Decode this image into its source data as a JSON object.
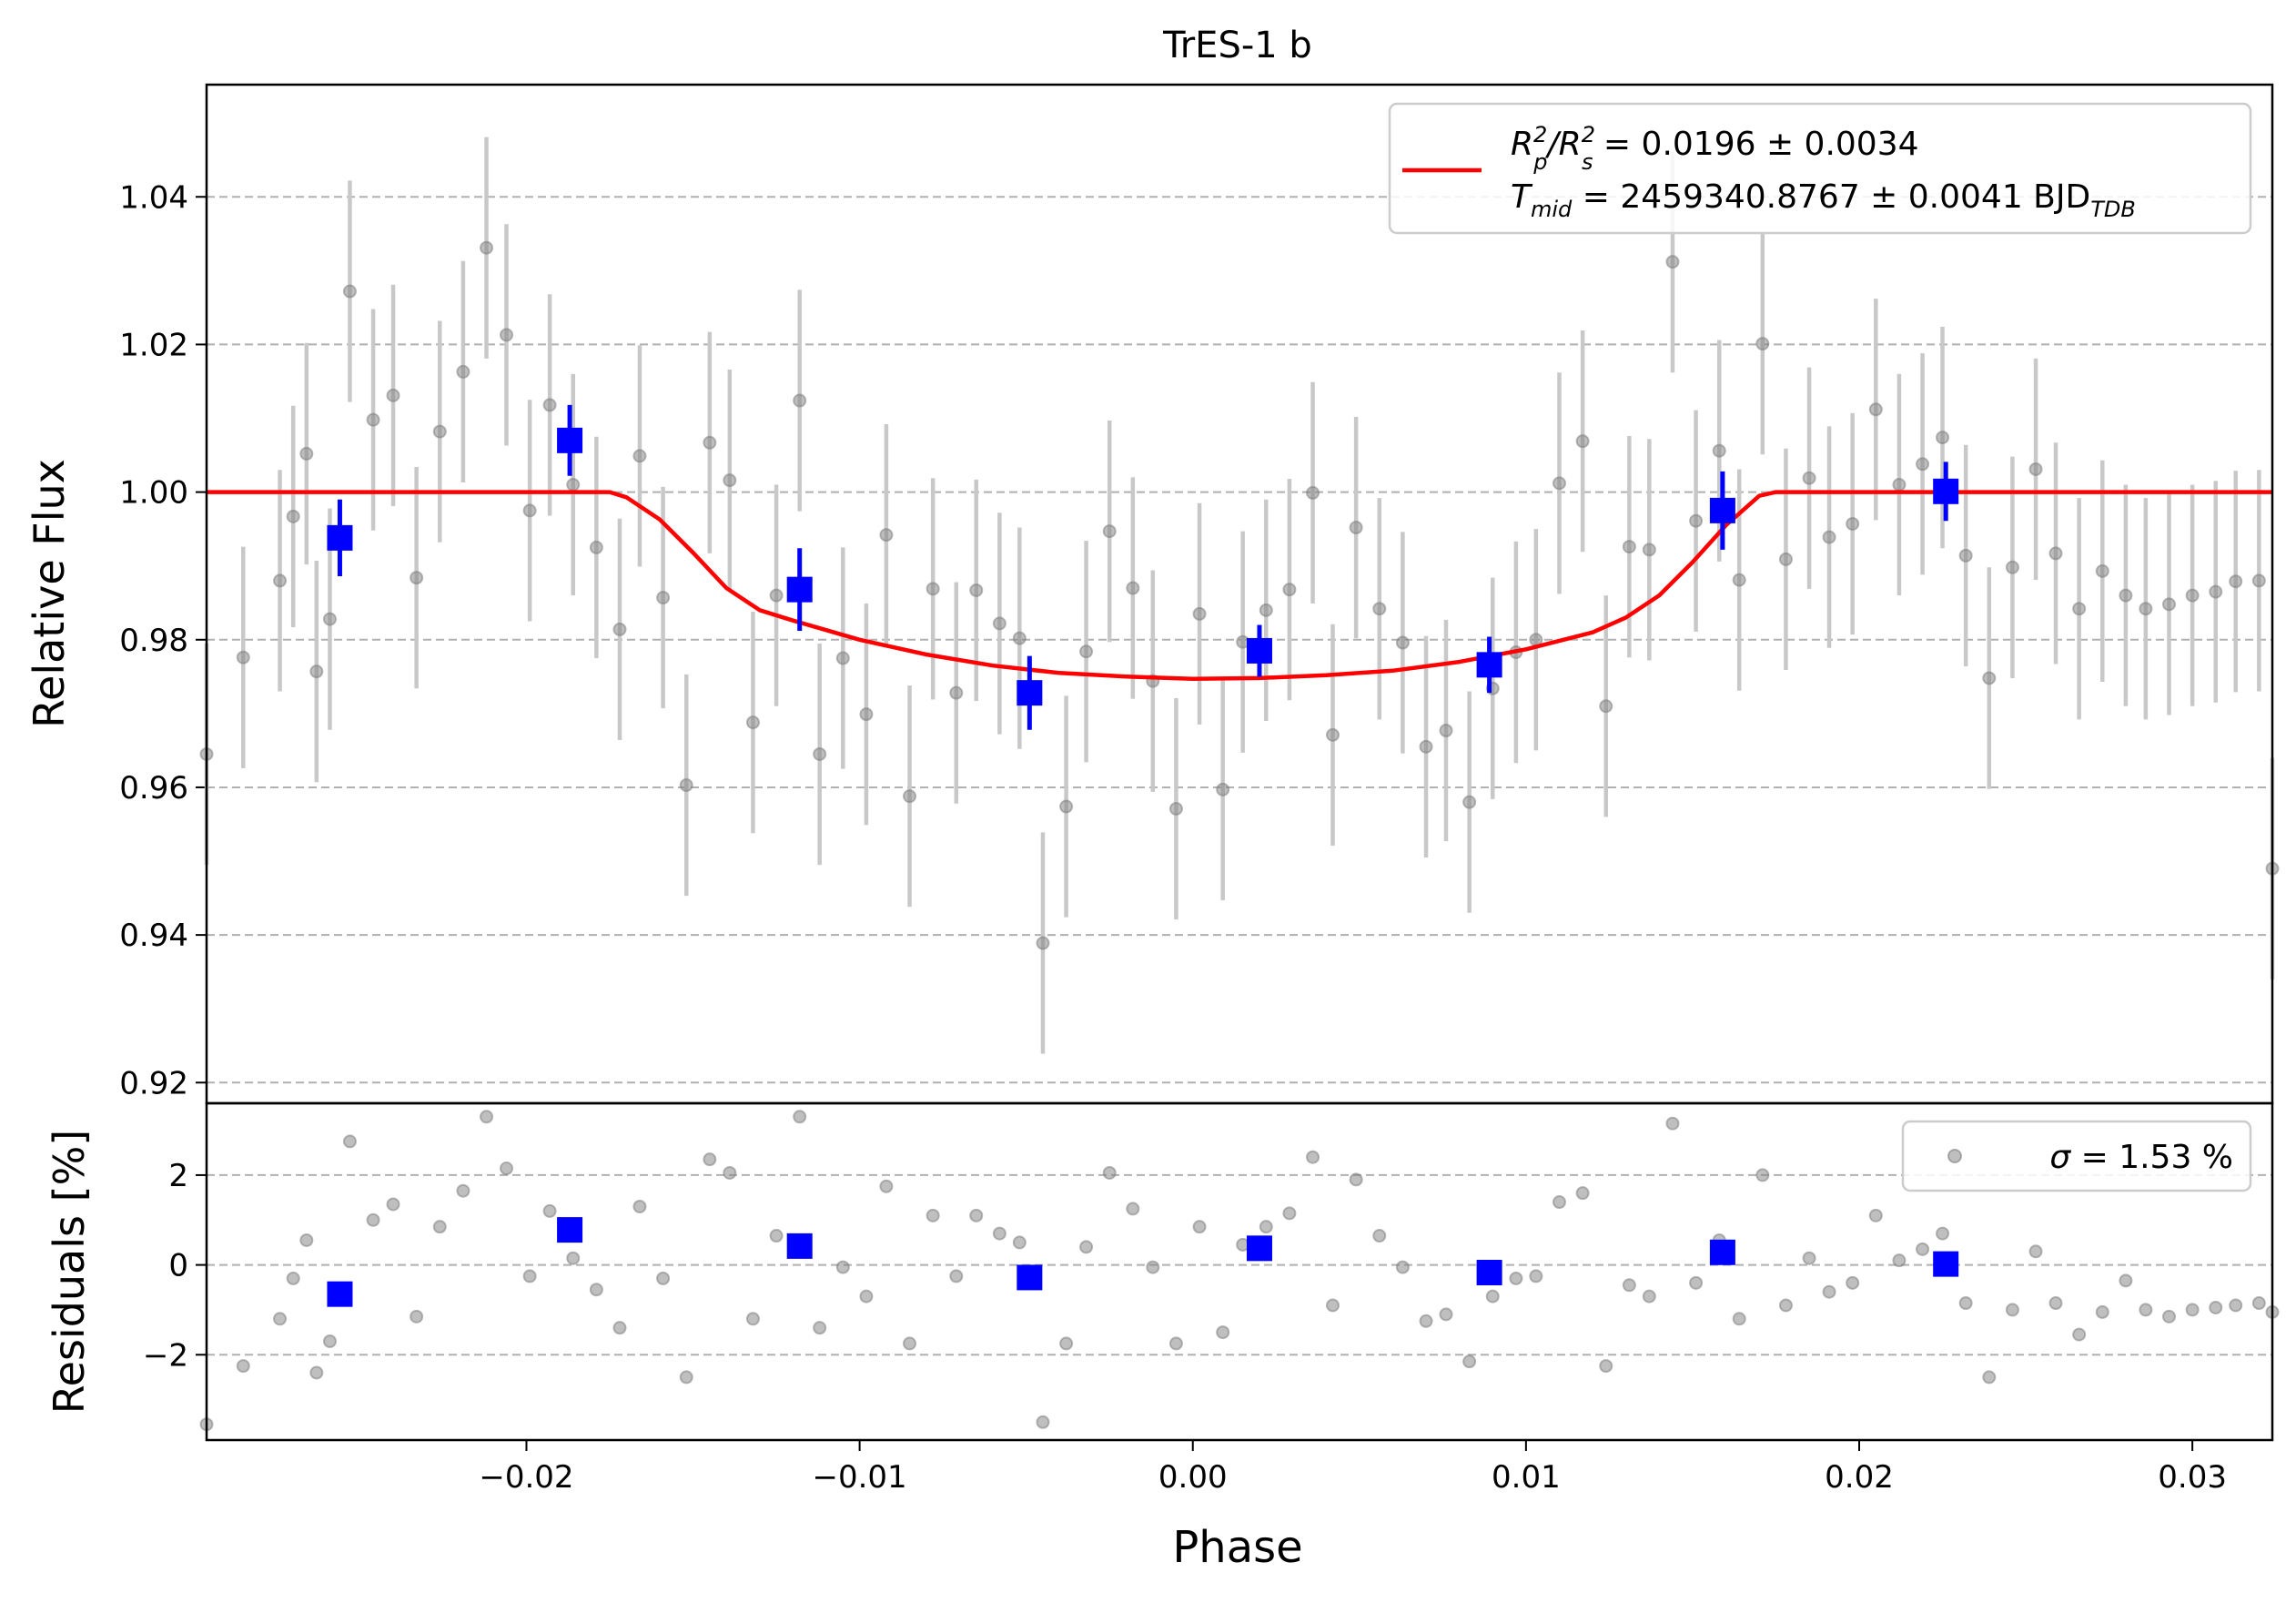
{
  "chart_data": [
    {
      "type": "scatter",
      "title": "TrES-1 b",
      "xlabel": "",
      "ylabel": "Relative Flux",
      "xlim": [
        -0.0296,
        0.0324
      ],
      "ylim": [
        0.9172,
        1.0552
      ],
      "yticks": [
        0.92,
        0.94,
        0.96,
        0.98,
        1.0,
        1.02,
        1.04
      ],
      "ytick_labels": [
        "0.92",
        "0.94",
        "0.96",
        "0.98",
        "1.00",
        "1.02",
        "1.04"
      ],
      "grid": "horizontal dashed",
      "legend_position": "top-right",
      "legend": {
        "line1": {
          "lhs": "R",
          "lhs_sup": "2",
          "lhs_sub": "p",
          "mid": "/R",
          "mid_sup": "2",
          "mid_sub": "s",
          "rest": " = 0.0196 ± 0.0034"
        },
        "line2": {
          "lhs": "T",
          "lhs_sub": "mid",
          "rest": " = 2459340.8767 ± 0.0041 BJD",
          "rest_sub": "TDB"
        }
      },
      "colors": {
        "raw": "#808080",
        "raw_err": "#c8c8c8",
        "binned": "#0000ff",
        "model": "#ff0000"
      },
      "series": [
        {
          "kind": "raw",
          "x": [
            -0.0296,
            -0.0285,
            -0.0274,
            -0.027,
            -0.0266,
            -0.0263,
            -0.0259,
            -0.0253,
            -0.0246,
            -0.024,
            -0.0233,
            -0.0226,
            -0.0219,
            -0.0212,
            -0.0206,
            -0.0199,
            -0.0193,
            -0.0186,
            -0.0179,
            -0.0172,
            -0.0166,
            -0.0159,
            -0.0152,
            -0.0145,
            -0.0139,
            -0.0132,
            -0.0125,
            -0.0118,
            -0.0112,
            -0.0105,
            -0.0098,
            -0.0092,
            -0.0085,
            -0.0078,
            -0.0071,
            -0.0065,
            -0.0058,
            -0.0052,
            -0.0045,
            -0.0038,
            -0.0032,
            -0.0025,
            -0.0018,
            -0.0012,
            -0.0005,
            0.0002,
            0.0009,
            0.0015,
            0.0022,
            0.0029,
            0.0036,
            0.0042,
            0.0049,
            0.0056,
            0.0063,
            0.007,
            0.0076,
            0.0083,
            0.009,
            0.0097,
            0.0103,
            0.011,
            0.0117,
            0.0124,
            0.0131,
            0.0137,
            0.0144,
            0.0151,
            0.0158,
            0.0164,
            0.0171,
            0.0178,
            0.0185,
            0.0191,
            0.0198,
            0.0205,
            0.0212,
            0.0219,
            0.0225,
            0.0232,
            0.0239,
            0.0246,
            0.0253,
            0.0259,
            0.0266,
            0.0273,
            0.028,
            0.0286,
            0.0293,
            0.03,
            0.0307,
            0.0313,
            0.032,
            0.0324
          ],
          "y": [
            0.9645,
            0.9776,
            0.988,
            0.9967,
            1.0052,
            0.9757,
            0.9828,
            1.0272,
            1.0098,
            1.0131,
            0.9884,
            1.0082,
            1.0163,
            1.0331,
            1.0213,
            0.9975,
            1.0118,
            1.001,
            0.9925,
            0.9814,
            1.0049,
            0.9857,
            0.9603,
            1.0067,
            1.0016,
            0.9688,
            0.986,
            1.0124,
            0.9645,
            0.9775,
            0.9699,
            0.9942,
            0.9588,
            0.9869,
            0.9728,
            0.9867,
            0.9822,
            0.9802,
            0.9389,
            0.9574,
            0.9784,
            0.9947,
            0.987,
            0.9744,
            0.9571,
            0.9835,
            0.9597,
            0.9797,
            0.984,
            0.9868,
            0.9999,
            0.9671,
            0.9952,
            0.9842,
            0.9796,
            0.9655,
            0.9677,
            0.958,
            0.9734,
            0.9783,
            0.98,
            1.0012,
            1.0069,
            0.971,
            0.9926,
            0.9922,
            1.0312,
            0.9961,
            1.0056,
            0.9881,
            1.0201,
            0.9909,
            1.0019,
            0.9939,
            0.9957,
            1.0112,
            1.001,
            1.0038,
            1.0074,
            0.9914,
            0.9748,
            0.9898,
            1.0031,
            0.9917,
            0.9842,
            0.9893,
            0.986,
            0.9842,
            0.9848,
            0.986,
            0.9865,
            0.9879,
            0.988,
            0.949
          ],
          "yerr": 0.015
        },
        {
          "kind": "binned",
          "x": [
            -0.0256,
            -0.0187,
            -0.0118,
            -0.0049,
            0.002,
            0.0089,
            0.0159,
            0.0226
          ],
          "y": [
            0.9938,
            1.007,
            0.9868,
            0.9728,
            0.9785,
            0.9766,
            0.9975,
            1.0001
          ],
          "yerr": [
            0.0052,
            0.0048,
            0.0056,
            0.005,
            0.0035,
            0.0038,
            0.0053,
            0.004
          ]
        },
        {
          "kind": "model",
          "x": [
            -0.0296,
            -0.0175,
            -0.017,
            -0.016,
            -0.015,
            -0.014,
            -0.013,
            -0.012,
            -0.01,
            -0.008,
            -0.006,
            -0.004,
            -0.002,
            0.0,
            0.002,
            0.004,
            0.006,
            0.008,
            0.01,
            0.012,
            0.013,
            0.014,
            0.015,
            0.016,
            0.017,
            0.0175,
            0.0324
          ],
          "y": [
            1.0,
            1.0,
            0.9993,
            0.9963,
            0.9918,
            0.987,
            0.984,
            0.9826,
            0.98,
            0.978,
            0.9765,
            0.9755,
            0.975,
            0.9747,
            0.9748,
            0.9752,
            0.9758,
            0.977,
            0.9787,
            0.981,
            0.983,
            0.986,
            0.9905,
            0.9955,
            0.9995,
            1.0,
            1.0
          ]
        }
      ]
    },
    {
      "type": "scatter",
      "title": "",
      "xlabel": "Phase",
      "ylabel": "Residuals [%]",
      "xlim": [
        -0.0296,
        0.0324
      ],
      "ylim": [
        -3.9,
        3.6
      ],
      "xticks": [
        -0.02,
        -0.01,
        0.0,
        0.01,
        0.02,
        0.03
      ],
      "xtick_labels": [
        "−0.02",
        "−0.01",
        "0.00",
        "0.01",
        "0.02",
        "0.03"
      ],
      "yticks": [
        -2,
        0,
        2
      ],
      "ytick_labels": [
        "−2",
        "0",
        "2"
      ],
      "grid": "horizontal dashed",
      "legend_position": "top-right",
      "legend": {
        "sym": "σ",
        "rest": " = 1.53 %"
      },
      "series": [
        {
          "kind": "raw",
          "x": [
            -0.0296,
            -0.0285,
            -0.0274,
            -0.027,
            -0.0266,
            -0.0263,
            -0.0259,
            -0.0253,
            -0.0246,
            -0.024,
            -0.0233,
            -0.0226,
            -0.0219,
            -0.0212,
            -0.0206,
            -0.0199,
            -0.0193,
            -0.0186,
            -0.0179,
            -0.0172,
            -0.0166,
            -0.0159,
            -0.0152,
            -0.0145,
            -0.0139,
            -0.0132,
            -0.0125,
            -0.0118,
            -0.0112,
            -0.0105,
            -0.0098,
            -0.0092,
            -0.0085,
            -0.0078,
            -0.0071,
            -0.0065,
            -0.0058,
            -0.0052,
            -0.0045,
            -0.0038,
            -0.0032,
            -0.0025,
            -0.0018,
            -0.0012,
            -0.0005,
            0.0002,
            0.0009,
            0.0015,
            0.0022,
            0.0029,
            0.0036,
            0.0042,
            0.0049,
            0.0056,
            0.0063,
            0.007,
            0.0076,
            0.0083,
            0.009,
            0.0097,
            0.0103,
            0.011,
            0.0117,
            0.0124,
            0.0131,
            0.0137,
            0.0144,
            0.0151,
            0.0158,
            0.0164,
            0.0171,
            0.0178,
            0.0185,
            0.0191,
            0.0198,
            0.0205,
            0.0212,
            0.0219,
            0.0225,
            0.0232,
            0.0239,
            0.0246,
            0.0253,
            0.0259,
            0.0266,
            0.0273,
            0.028,
            0.0286,
            0.0293,
            0.03,
            0.0307,
            0.0313,
            0.032,
            0.0324
          ],
          "y": [
            -3.55,
            -2.25,
            -1.2,
            -0.3,
            0.55,
            -2.4,
            -1.7,
            2.75,
            1.0,
            1.35,
            -1.15,
            0.85,
            1.65,
            3.3,
            2.15,
            -0.25,
            1.2,
            0.15,
            -0.55,
            -1.4,
            1.3,
            -0.3,
            -2.5,
            2.35,
            2.05,
            -1.2,
            0.65,
            3.3,
            -1.4,
            -0.05,
            -0.7,
            1.75,
            -1.75,
            1.1,
            -0.25,
            1.1,
            0.7,
            0.5,
            -3.5,
            -1.75,
            0.4,
            2.05,
            1.25,
            -0.05,
            -1.75,
            0.85,
            -1.5,
            0.45,
            0.85,
            1.15,
            2.4,
            -0.9,
            1.9,
            0.65,
            -0.05,
            -1.25,
            -1.1,
            -2.15,
            -0.7,
            -0.3,
            -0.25,
            1.4,
            1.6,
            -2.25,
            -0.45,
            -0.7,
            3.15,
            -0.4,
            0.55,
            -1.2,
            2.0,
            -0.9,
            0.15,
            -0.6,
            -0.4,
            1.1,
            0.1,
            0.35,
            0.7,
            -0.85,
            -2.5,
            -1.0,
            0.3,
            -0.85,
            -1.55,
            -1.05,
            -0.35,
            -1.0,
            -1.15,
            -1.0,
            -0.95,
            -0.9,
            -0.85,
            -1.05
          ]
        },
        {
          "kind": "binned",
          "x": [
            -0.0256,
            -0.0187,
            -0.0118,
            -0.0049,
            0.002,
            0.0089,
            0.0159,
            0.0226
          ],
          "y": [
            -0.65,
            0.78,
            0.42,
            -0.28,
            0.37,
            -0.17,
            0.28,
            0.02
          ]
        }
      ]
    }
  ]
}
